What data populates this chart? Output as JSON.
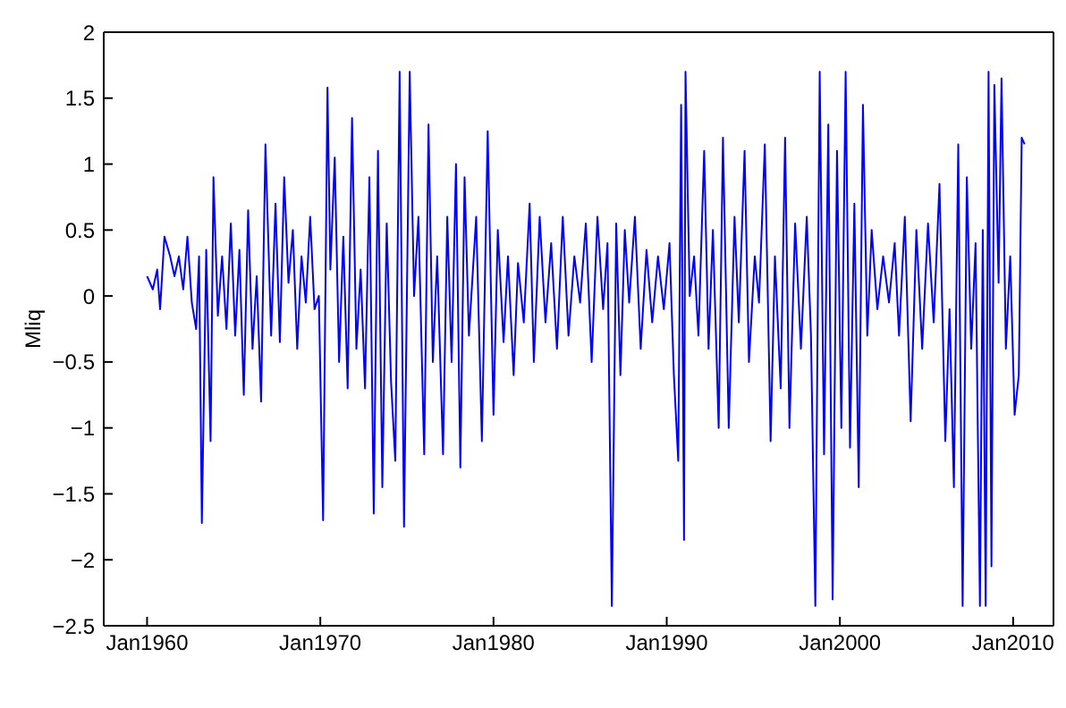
{
  "chart_data": {
    "type": "line",
    "ylabel": "Mliq",
    "color": "#0000ff",
    "marker": "none",
    "line_style": "solid",
    "xlim": [
      "1957-07",
      "2012-05"
    ],
    "xticks": [
      {
        "value": "1960-01",
        "label": "Jan1960"
      },
      {
        "value": "1970-01",
        "label": "Jan1970"
      },
      {
        "value": "1980-01",
        "label": "Jan1980"
      },
      {
        "value": "1990-01",
        "label": "Jan1990"
      },
      {
        "value": "2000-01",
        "label": "Jan2000"
      },
      {
        "value": "2010-01",
        "label": "Jan2010"
      }
    ],
    "ylim": [
      -2.5,
      2
    ],
    "yticks": [
      -2.5,
      -2,
      -1.5,
      -1,
      -0.5,
      0,
      0.5,
      1,
      1.5,
      2
    ],
    "x": [
      "1960-01",
      "1960-05",
      "1960-08",
      "1960-10",
      "1961-01",
      "1961-05",
      "1961-08",
      "1961-11",
      "1962-02",
      "1962-05",
      "1962-08",
      "1962-11",
      "1963-01",
      "1963-03",
      "1963-06",
      "1963-09",
      "1963-11",
      "1964-02",
      "1964-05",
      "1964-08",
      "1964-11",
      "1965-02",
      "1965-05",
      "1965-08",
      "1965-11",
      "1966-02",
      "1966-05",
      "1966-08",
      "1966-11",
      "1967-03",
      "1967-06",
      "1967-09",
      "1967-12",
      "1968-03",
      "1968-06",
      "1968-09",
      "1968-12",
      "1969-03",
      "1969-06",
      "1969-09",
      "1969-12",
      "1970-03",
      "1970-06",
      "1970-08",
      "1970-11",
      "1971-02",
      "1971-05",
      "1971-08",
      "1971-11",
      "1972-02",
      "1972-05",
      "1972-08",
      "1972-11",
      "1973-02",
      "1973-05",
      "1973-08",
      "1973-11",
      "1974-02",
      "1974-05",
      "1974-08",
      "1974-11",
      "1975-03",
      "1975-06",
      "1975-09",
      "1976-01",
      "1976-04",
      "1976-07",
      "1976-10",
      "1977-02",
      "1977-05",
      "1977-08",
      "1977-11",
      "1978-02",
      "1978-05",
      "1978-08",
      "1979-01",
      "1979-05",
      "1979-09",
      "1980-01",
      "1980-04",
      "1980-08",
      "1980-11",
      "1981-03",
      "1981-06",
      "1981-10",
      "1982-02",
      "1982-05",
      "1982-09",
      "1983-01",
      "1983-05",
      "1983-09",
      "1984-01",
      "1984-05",
      "1984-09",
      "1985-01",
      "1985-05",
      "1985-09",
      "1986-01",
      "1986-05",
      "1986-08",
      "1986-11",
      "1987-02",
      "1987-05",
      "1987-08",
      "1987-11",
      "1988-03",
      "1988-07",
      "1988-11",
      "1989-03",
      "1989-07",
      "1989-11",
      "1990-03",
      "1990-06",
      "1990-09",
      "1990-11",
      "1991-01",
      "1991-02",
      "1991-05",
      "1991-08",
      "1991-11",
      "1992-03",
      "1992-06",
      "1992-09",
      "1993-01",
      "1993-04",
      "1993-08",
      "1993-12",
      "1994-03",
      "1994-07",
      "1994-10",
      "1995-02",
      "1995-05",
      "1995-09",
      "1996-01",
      "1996-04",
      "1996-08",
      "1996-11",
      "1997-02",
      "1997-06",
      "1997-10",
      "1998-02",
      "1998-05",
      "1998-08",
      "1998-11",
      "1999-02",
      "1999-05",
      "1999-08",
      "1999-11",
      "2000-02",
      "2000-05",
      "2000-08",
      "2000-11",
      "2001-02",
      "2001-05",
      "2001-08",
      "2001-11",
      "2002-03",
      "2002-07",
      "2002-11",
      "2003-03",
      "2003-06",
      "2003-10",
      "2004-02",
      "2004-06",
      "2004-10",
      "2005-02",
      "2005-06",
      "2005-10",
      "2006-02",
      "2006-05",
      "2006-08",
      "2006-11",
      "2007-02",
      "2007-05",
      "2007-08",
      "2007-11",
      "2008-02",
      "2008-04",
      "2008-06",
      "2008-08",
      "2008-10",
      "2008-12",
      "2009-03",
      "2009-05",
      "2009-08",
      "2009-11",
      "2010-02",
      "2010-05",
      "2010-07",
      "2010-09"
    ],
    "values": [
      0.15,
      0.05,
      0.2,
      -0.1,
      0.45,
      0.3,
      0.15,
      0.3,
      0.05,
      0.45,
      -0.05,
      -0.25,
      0.3,
      -1.72,
      0.35,
      -1.1,
      0.9,
      -0.15,
      0.3,
      -0.25,
      0.55,
      -0.3,
      0.35,
      -0.75,
      0.65,
      -0.4,
      0.15,
      -0.8,
      1.15,
      -0.3,
      0.7,
      -0.35,
      0.9,
      0.1,
      0.5,
      -0.4,
      0.3,
      -0.05,
      0.6,
      -0.1,
      0.0,
      -1.7,
      1.58,
      0.2,
      1.05,
      -0.5,
      0.45,
      -0.7,
      1.35,
      -0.4,
      0.2,
      -0.7,
      0.9,
      -1.65,
      1.1,
      -1.45,
      0.55,
      -0.65,
      -1.25,
      1.7,
      -1.75,
      1.7,
      0.0,
      0.6,
      -1.2,
      1.3,
      -0.5,
      0.3,
      -1.2,
      0.6,
      -0.5,
      1.0,
      -1.3,
      0.9,
      -0.3,
      0.6,
      -1.1,
      1.25,
      -0.9,
      0.5,
      -0.35,
      0.3,
      -0.6,
      0.25,
      -0.2,
      0.7,
      -0.5,
      0.6,
      -0.2,
      0.4,
      -0.4,
      0.6,
      -0.3,
      0.3,
      -0.05,
      0.55,
      -0.5,
      0.6,
      -0.1,
      0.4,
      -2.35,
      0.55,
      -0.6,
      0.5,
      -0.05,
      0.6,
      -0.4,
      0.35,
      -0.2,
      0.3,
      -0.1,
      0.4,
      -0.6,
      -1.25,
      1.45,
      -1.85,
      1.7,
      0.0,
      0.3,
      -0.3,
      1.1,
      -0.4,
      0.5,
      -1.0,
      1.2,
      -1.0,
      0.6,
      -0.2,
      1.1,
      -0.5,
      0.3,
      -0.05,
      1.15,
      -1.1,
      0.3,
      -0.7,
      1.2,
      -1.0,
      0.55,
      -0.4,
      0.6,
      -0.3,
      -2.35,
      1.7,
      -1.2,
      1.3,
      -2.3,
      1.1,
      -1.0,
      1.7,
      -1.15,
      0.7,
      -1.45,
      1.45,
      -0.3,
      0.5,
      -0.1,
      0.3,
      -0.05,
      0.4,
      -0.3,
      0.6,
      -0.95,
      0.5,
      -0.4,
      0.55,
      -0.2,
      0.85,
      -1.1,
      -0.1,
      -1.45,
      1.15,
      -2.35,
      0.9,
      -0.4,
      0.4,
      -2.35,
      0.5,
      -2.35,
      1.7,
      -2.05,
      1.6,
      0.1,
      1.65,
      -0.4,
      0.3,
      -0.9,
      -0.6,
      1.2,
      1.15
    ]
  }
}
